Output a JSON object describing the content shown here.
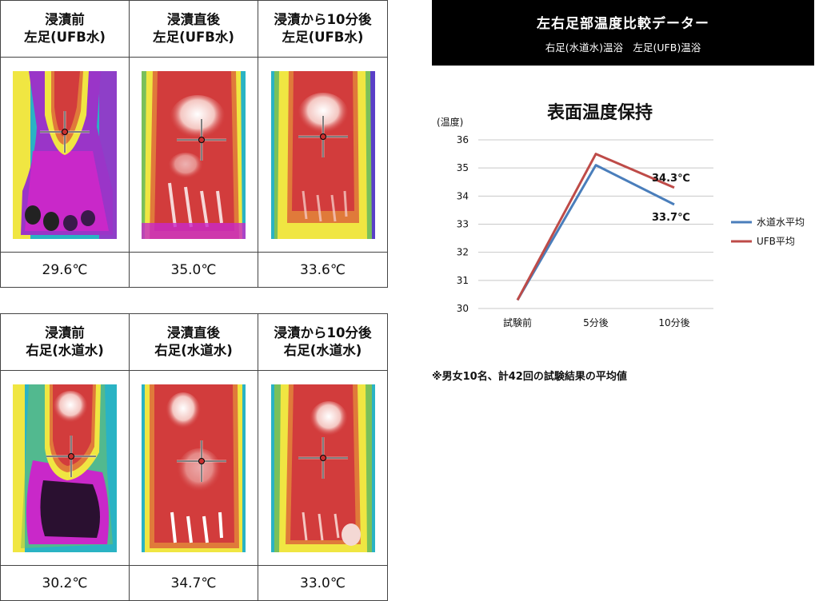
{
  "panels": [
    {
      "columns": [
        {
          "line1": "浸漬前",
          "line2": "左足(UFB水)",
          "temp": "29.6℃"
        },
        {
          "line1": "浸漬直後",
          "line2": "左足(UFB水)",
          "temp": "35.0℃"
        },
        {
          "line1": "浸漬から10分後",
          "line2": "左足(UFB水)",
          "temp": "33.6℃"
        }
      ]
    },
    {
      "columns": [
        {
          "line1": "浸漬前",
          "line2": "右足(水道水)",
          "temp": "30.2℃"
        },
        {
          "line1": "浸漬直後",
          "line2": "右足(水道水)",
          "temp": "34.7℃"
        },
        {
          "line1": "浸漬から10分後",
          "line2": "右足(水道水)",
          "temp": "33.0℃"
        }
      ]
    }
  ],
  "banner": {
    "title": "左右足部温度比較データー",
    "subtitle": "右足(水道水)温浴　左足(UFB)温浴"
  },
  "chart_data": {
    "type": "line",
    "title": "表面温度保持",
    "ylabel": "(温度)",
    "categories": [
      "試験前",
      "5分後",
      "10分後"
    ],
    "ylim": [
      30,
      36
    ],
    "yticks": [
      30,
      31,
      32,
      33,
      34,
      35,
      36
    ],
    "grid": true,
    "legend_position": "right",
    "series": [
      {
        "name": "水道水平均",
        "values": [
          30.3,
          35.1,
          33.7
        ],
        "color": "#4a7ebb",
        "end_label": "33.7℃"
      },
      {
        "name": "UFB平均",
        "values": [
          30.3,
          35.5,
          34.3
        ],
        "color": "#be4b48",
        "end_label": "34.3℃"
      }
    ]
  },
  "footnote": "※男女10名、計42回の試験結果の平均値"
}
